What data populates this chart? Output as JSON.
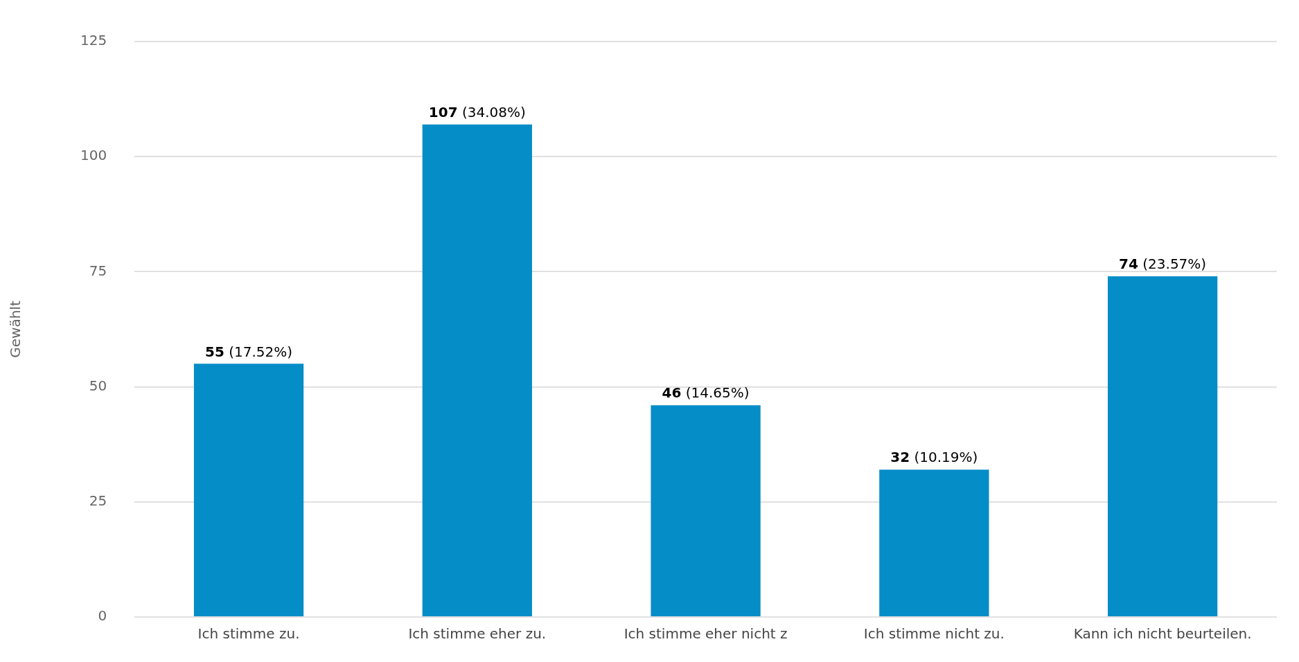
{
  "chart_data": {
    "type": "bar",
    "ylabel": "Gewählt",
    "categories": [
      "Ich stimme zu.",
      "Ich stimme eher zu.",
      "Ich stimme eher nicht z",
      "Ich stimme nicht zu.",
      "Kann ich nicht beurteilen."
    ],
    "values": [
      55,
      107,
      46,
      32,
      74
    ],
    "value_labels": [
      "55 (17.52%)",
      "107 (34.08%)",
      "46 (14.65%)",
      "32 (10.19%)",
      "74 (23.57%)"
    ],
    "color": "#058dc7",
    "ylim": [
      0,
      125
    ],
    "yticks": [
      0,
      25,
      50,
      75,
      100,
      125
    ],
    "grid": "y",
    "legend": false
  }
}
